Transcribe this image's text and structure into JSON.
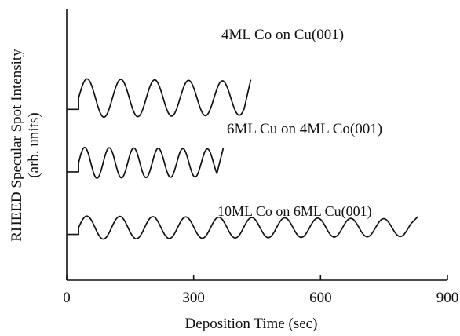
{
  "chart_data": {
    "type": "line",
    "title": "",
    "xlabel": "Deposition Time (sec)",
    "ylabel": "RHEED Specular Spot Intensity",
    "ylabel_sub": "(arb. units)",
    "xlim": [
      0,
      900
    ],
    "x_ticks": [
      0,
      300,
      600,
      900
    ],
    "x_tick_labels": [
      "0",
      "300",
      "600",
      "900"
    ],
    "yticks_visible": false,
    "grid": false,
    "legend": "none",
    "series": [
      {
        "name": "4ML Co on Cu(001)",
        "start": 0,
        "baseline_end": 28,
        "period": 80,
        "end": 420,
        "amplitude": 1.0,
        "offset": 3.0
      },
      {
        "name": "6ML Cu on 4ML Co(001)",
        "start": 0,
        "baseline_end": 28,
        "period": 58,
        "end": 355,
        "amplitude": 0.8,
        "offset": 1.5
      },
      {
        "name": "10ML Co on 6ML Cu(001)",
        "start": 0,
        "baseline_end": 28,
        "period": 78,
        "end": 815,
        "amplitude": 0.6,
        "offset": 0.0
      }
    ]
  }
}
